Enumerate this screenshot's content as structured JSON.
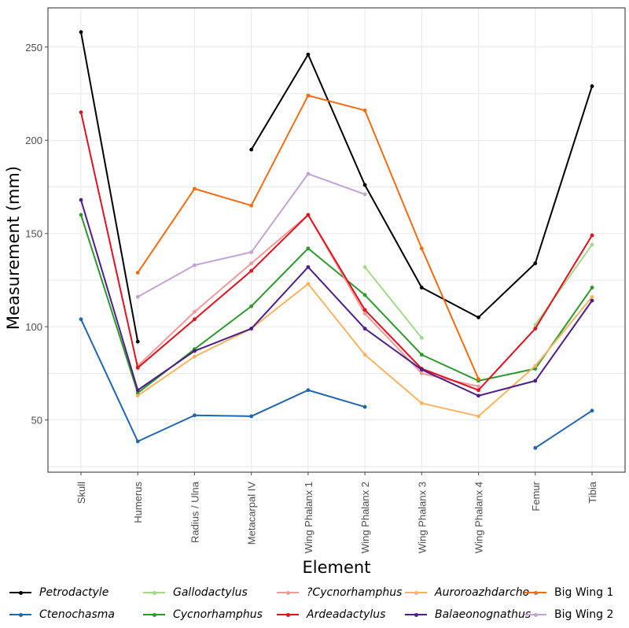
{
  "chart_data": {
    "type": "line",
    "title": "",
    "xlabel": "Element",
    "ylabel": "Measurement (mm)",
    "ylim": [
      22,
      271
    ],
    "yticks": [
      50,
      100,
      150,
      200,
      250
    ],
    "grid": true,
    "legend_position": "bottom",
    "categories": [
      "Skull",
      "Humerus",
      "Radius / Ulna",
      "Metacarpal IV",
      "Wing Phalanx 1",
      "Wing Phalanx 2",
      "Wing Phalanx 3",
      "Wing Phalanx 4",
      "Femur",
      "Tibia"
    ],
    "series": [
      {
        "name": "Petrodactyle",
        "italic": true,
        "color": "#000000",
        "values": [
          258,
          92,
          null,
          195,
          246,
          176,
          121,
          105,
          134,
          229
        ]
      },
      {
        "name": "Ctenochasma",
        "italic": true,
        "color": "#1f66b0",
        "values": [
          104,
          38.5,
          52.5,
          52,
          66,
          57,
          null,
          null,
          35,
          55
        ]
      },
      {
        "name": "Gallodactylus",
        "italic": true,
        "color": "#a3d98a",
        "values": [
          null,
          null,
          null,
          null,
          null,
          132,
          94,
          null,
          101,
          144
        ]
      },
      {
        "name": "Cycnorhamphus",
        "italic": true,
        "color": "#2a9a2a",
        "values": [
          160,
          64.5,
          88,
          111,
          142,
          117,
          85,
          71,
          77.5,
          121
        ]
      },
      {
        "name": "?Cycnorhamphus",
        "italic": true,
        "color": "#f29a9a",
        "values": [
          null,
          79,
          108,
          134,
          160,
          107,
          75,
          68,
          null,
          null
        ]
      },
      {
        "name": "Ardeadactylus",
        "italic": true,
        "color": "#e3111e",
        "values": [
          215,
          78,
          104,
          130,
          160,
          109,
          77.5,
          66,
          99,
          149
        ]
      },
      {
        "name": "Auroroazhdarcho",
        "italic": true,
        "color": "#fbb360",
        "values": [
          null,
          63,
          84,
          99,
          123,
          85,
          59,
          52,
          79,
          116
        ]
      },
      {
        "name": "Balaeonognathus",
        "italic": true,
        "color": "#4d1d8a",
        "values": [
          168,
          66,
          87,
          99,
          132,
          99,
          77,
          63,
          71,
          114
        ]
      },
      {
        "name": "Big Wing 1",
        "italic": false,
        "color": "#f56b0f",
        "values": [
          null,
          129,
          174,
          165,
          224,
          216,
          142,
          72,
          null,
          null
        ]
      },
      {
        "name": "Big Wing 2",
        "italic": false,
        "color": "#c2a3d6",
        "values": [
          null,
          116,
          133,
          140,
          182,
          171,
          null,
          null,
          null,
          null
        ]
      }
    ]
  }
}
